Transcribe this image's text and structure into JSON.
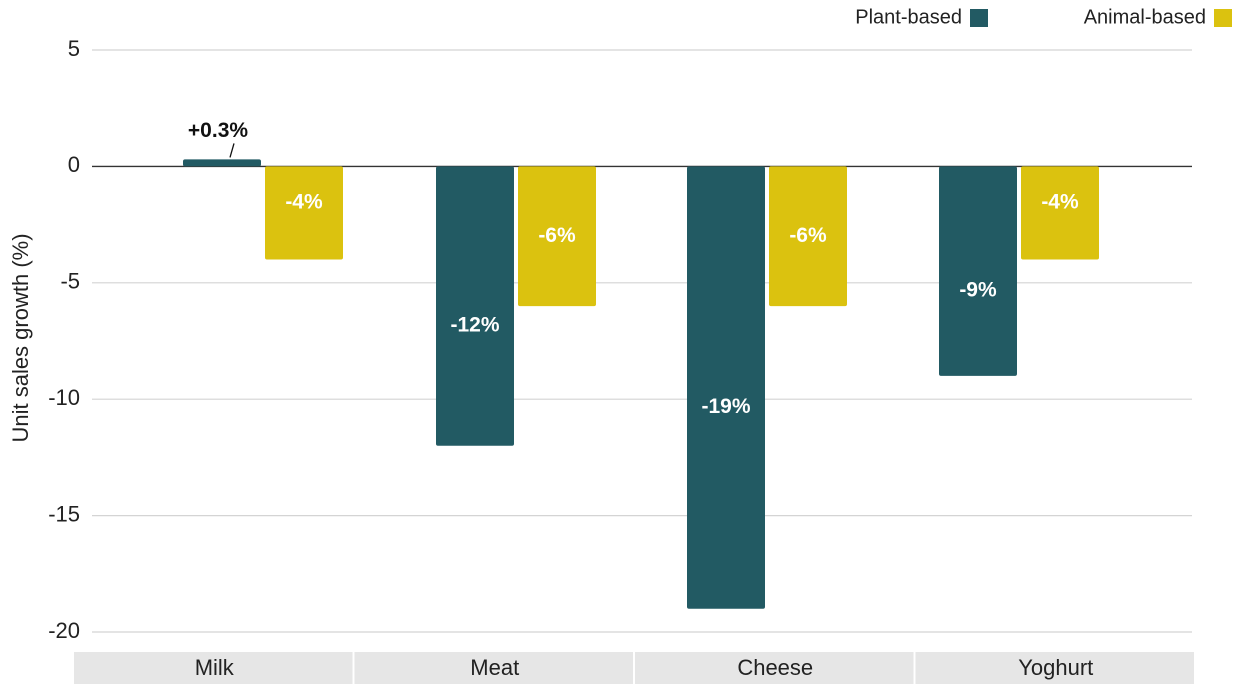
{
  "chart_data": {
    "type": "bar",
    "title": "",
    "xlabel": "",
    "ylabel": "Unit sales growth (%)",
    "categories": [
      "Milk",
      "Meat",
      "Cheese",
      "Yoghurt"
    ],
    "series": [
      {
        "name": "Plant-based",
        "color": "#225a63",
        "values": [
          0.3,
          -12,
          -19,
          -9
        ],
        "labels": [
          "+0.3%",
          "-12%",
          "-19%",
          "-9%"
        ]
      },
      {
        "name": "Animal-based",
        "color": "#dbc20f",
        "values": [
          -4,
          -6,
          -6,
          -4
        ],
        "labels": [
          "-4%",
          "-6%",
          "-6%",
          "-4%"
        ]
      }
    ],
    "ylim": [
      -20,
      5
    ],
    "yticks": [
      5,
      0,
      -5,
      -10,
      -15,
      -20
    ],
    "grid": true,
    "legend_position": "top-right"
  }
}
